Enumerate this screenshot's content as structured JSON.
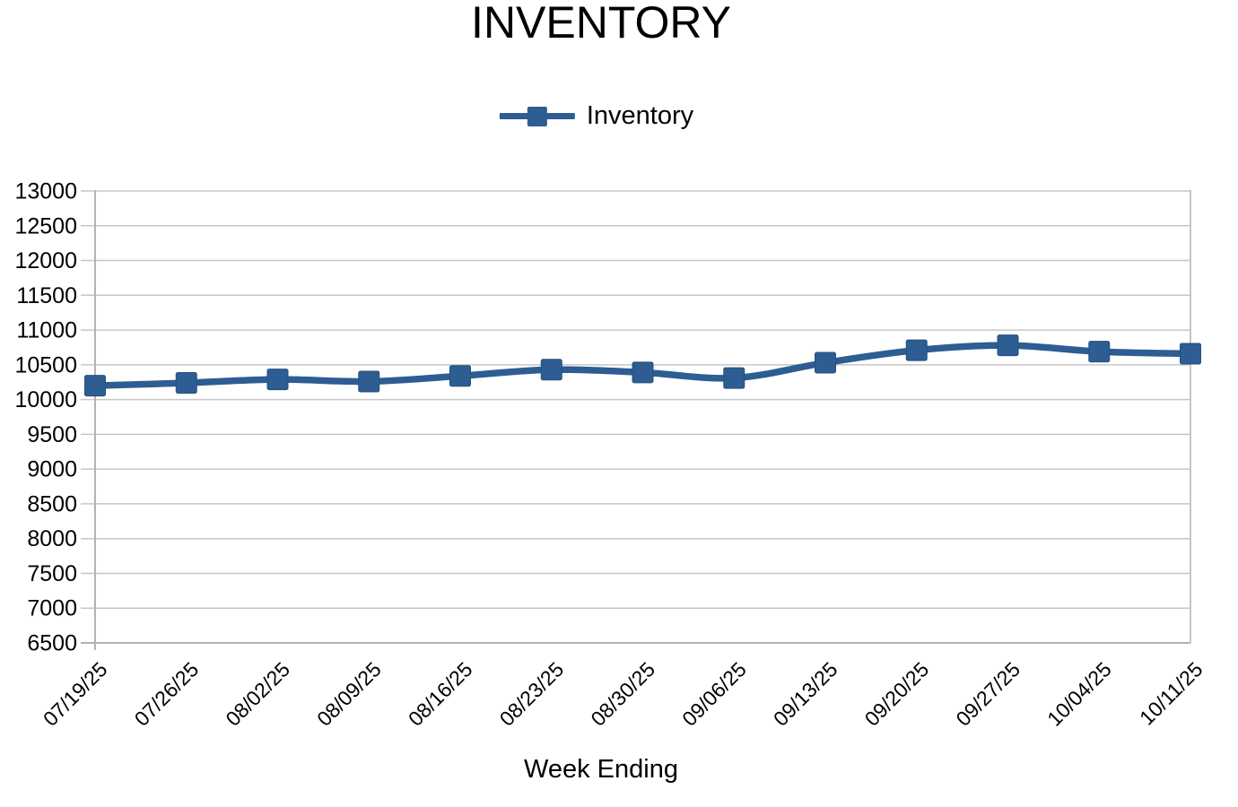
{
  "chart_data": {
    "type": "line",
    "title": "INVENTORY",
    "xlabel": "Week Ending",
    "ylabel": "",
    "legend": {
      "position": "top",
      "entries": [
        "Inventory"
      ]
    },
    "categories": [
      "07/19/25",
      "07/26/25",
      "08/02/25",
      "08/09/25",
      "08/16/25",
      "08/23/25",
      "08/30/25",
      "09/06/25",
      "09/13/25",
      "09/20/25",
      "09/27/25",
      "10/04/25",
      "10/11/25"
    ],
    "series": [
      {
        "name": "Inventory",
        "values": [
          10200,
          10240,
          10290,
          10260,
          10340,
          10430,
          10390,
          10310,
          10530,
          10710,
          10780,
          10690,
          10660
        ]
      }
    ],
    "ylim": [
      6500,
      13000
    ],
    "ytick_step": 500,
    "ytick_labels": [
      "6500",
      "7000",
      "7500",
      "8000",
      "8500",
      "9000",
      "9500",
      "10000",
      "10500",
      "11000",
      "11500",
      "12000",
      "12500",
      "13000"
    ],
    "grid": "horizontal",
    "marker": "square",
    "colors": {
      "series": "#2d5d92",
      "marker_stroke": "#24517f",
      "gridline": "#c6c6c6",
      "axis": "#b3b3b3",
      "text": "#000000",
      "background": "#ffffff"
    }
  }
}
